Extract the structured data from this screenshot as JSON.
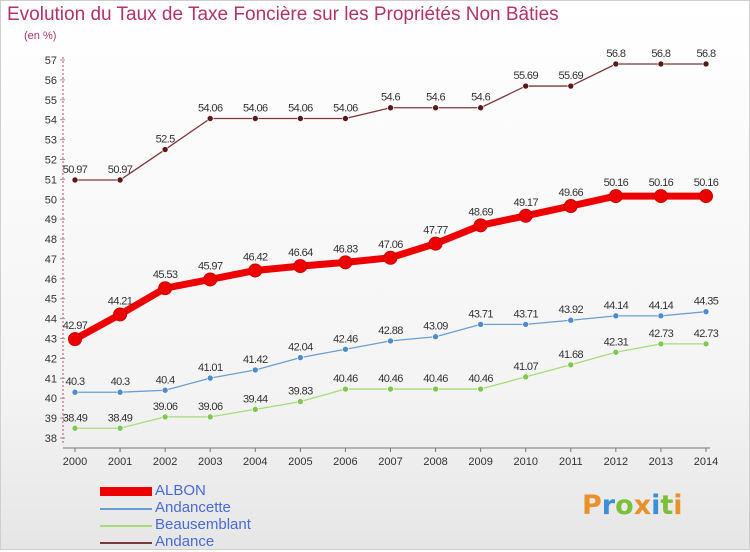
{
  "title": "Evolution du Taux de Taxe Foncière sur les Propriétés Non Bâties",
  "subtitle": "(en %)",
  "logo": {
    "text": "Proxiti",
    "letter_colors": [
      "#e8902a",
      "#3b8ed8",
      "#7cbf3a",
      "#e8902a",
      "#3b8ed8",
      "#7cbf3a",
      "#e8902a"
    ]
  },
  "chart_data": {
    "type": "line",
    "x": [
      2000,
      2001,
      2002,
      2003,
      2004,
      2005,
      2006,
      2007,
      2008,
      2009,
      2010,
      2011,
      2012,
      2013,
      2014
    ],
    "x_tick_labels": [
      "2000",
      "2001",
      "2002",
      "2003",
      "2004",
      "2005",
      "2006",
      "2007",
      "2008",
      "2009",
      "2010",
      "2011",
      "2012",
      "2013",
      "2014"
    ],
    "ylim": [
      38,
      57
    ],
    "y_ticks": [
      38,
      39,
      40,
      41,
      42,
      43,
      44,
      45,
      46,
      47,
      48,
      49,
      50,
      51,
      52,
      53,
      54,
      55,
      56,
      57
    ],
    "grid": false,
    "legend_position": "bottom-left",
    "series": [
      {
        "name": "ALBON",
        "color": "#ee0000",
        "marker_color": "#ee0000",
        "emphasis": true,
        "values": [
          42.97,
          44.21,
          45.53,
          45.97,
          46.42,
          46.64,
          46.83,
          47.06,
          47.77,
          48.69,
          49.17,
          49.66,
          50.16,
          50.16,
          50.16
        ],
        "labels": [
          "42.97",
          "44.21",
          "45.53",
          "45.97",
          "46.42",
          "46.64",
          "46.83",
          "47.06",
          "47.77",
          "48.69",
          "49.17",
          "49.66",
          "50.16",
          "50.16",
          "50.16"
        ]
      },
      {
        "name": "Andancette",
        "color": "#6a9fd4",
        "marker_color": "#4d8ad0",
        "emphasis": false,
        "values": [
          40.3,
          40.3,
          40.4,
          41.01,
          41.42,
          42.04,
          42.46,
          42.88,
          43.09,
          43.71,
          43.71,
          43.92,
          44.14,
          44.14,
          44.35
        ],
        "labels": [
          "40.3",
          "40.3",
          "40.4",
          "41.01",
          "41.42",
          "42.04",
          "42.46",
          "42.88",
          "43.09",
          "43.71",
          "43.71",
          "43.92",
          "44.14",
          "44.14",
          "44.35"
        ]
      },
      {
        "name": "Beausemblant",
        "color": "#a6dc7a",
        "marker_color": "#7cc850",
        "emphasis": false,
        "values": [
          38.49,
          38.49,
          39.06,
          39.06,
          39.44,
          39.83,
          40.46,
          40.46,
          40.46,
          40.46,
          41.07,
          41.68,
          42.31,
          42.73,
          42.73
        ],
        "labels": [
          "38.49",
          "38.49",
          "39.06",
          "39.06",
          "39.44",
          "39.83",
          "40.46",
          "40.46",
          "40.46",
          "40.46",
          "41.07",
          "41.68",
          "42.31",
          "42.73",
          "42.73"
        ]
      },
      {
        "name": "Andance",
        "color": "#7a3a3a",
        "marker_color": "#5a1818",
        "emphasis": false,
        "values": [
          50.97,
          50.97,
          52.5,
          54.06,
          54.06,
          54.06,
          54.06,
          54.6,
          54.6,
          54.6,
          55.69,
          55.69,
          56.8,
          56.8,
          56.8
        ],
        "labels": [
          "50.97",
          "50.97",
          "52.5",
          "54.06",
          "54.06",
          "54.06",
          "54.06",
          "54.6",
          "54.6",
          "54.6",
          "55.69",
          "55.69",
          "56.8",
          "56.8",
          "56.8"
        ]
      }
    ]
  }
}
